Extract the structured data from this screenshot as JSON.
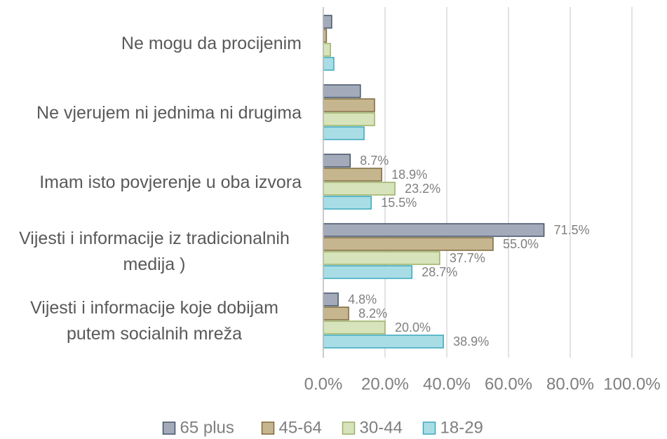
{
  "chart_data": {
    "type": "bar",
    "orientation": "horizontal",
    "categories": [
      "Ne mogu da procijenim",
      "Ne vjerujem ni jednima ni drugima",
      "Imam isto povjerenje u oba izvora",
      "Vijesti i informacije iz tradicionalnih medija )",
      "Vijesti i informacije koje dobijam putem socialnih mreža"
    ],
    "series": [
      {
        "name": "65 plus",
        "color": "#a3abba",
        "stroke": "#44546a",
        "values": [
          2.7,
          12.0,
          8.7,
          71.5,
          4.8
        ],
        "value_labels": [
          null,
          null,
          "8.7%",
          "71.5%",
          "4.8%"
        ]
      },
      {
        "name": "45-64",
        "color": "#c6b690",
        "stroke": "#7f6a3c",
        "values": [
          1.0,
          16.6,
          18.9,
          55.0,
          8.2
        ],
        "value_labels": [
          null,
          null,
          "18.9%",
          "55.0%",
          "8.2%"
        ]
      },
      {
        "name": "30-44",
        "color": "#d7e3ba",
        "stroke": "#9bb067",
        "values": [
          2.3,
          16.6,
          23.2,
          37.7,
          20.0
        ],
        "value_labels": [
          null,
          null,
          "23.2%",
          "37.7%",
          "20.0%"
        ]
      },
      {
        "name": "18-29",
        "color": "#a9dde6",
        "stroke": "#3aa8bd",
        "values": [
          3.4,
          13.2,
          15.5,
          28.7,
          38.9
        ],
        "value_labels": [
          null,
          null,
          "15.5%",
          "28.7%",
          "38.9%"
        ]
      }
    ],
    "xlim": [
      0,
      100
    ],
    "xticks": [
      {
        "value": 0,
        "label": "0.0%"
      },
      {
        "value": 20,
        "label": "20.0%"
      },
      {
        "value": 40,
        "label": "40.0%"
      },
      {
        "value": 60,
        "label": "60.0%"
      },
      {
        "value": 80,
        "label": "80.0%"
      },
      {
        "value": 100,
        "label": "100.0%"
      }
    ],
    "grid": true,
    "legend": "bottom"
  }
}
